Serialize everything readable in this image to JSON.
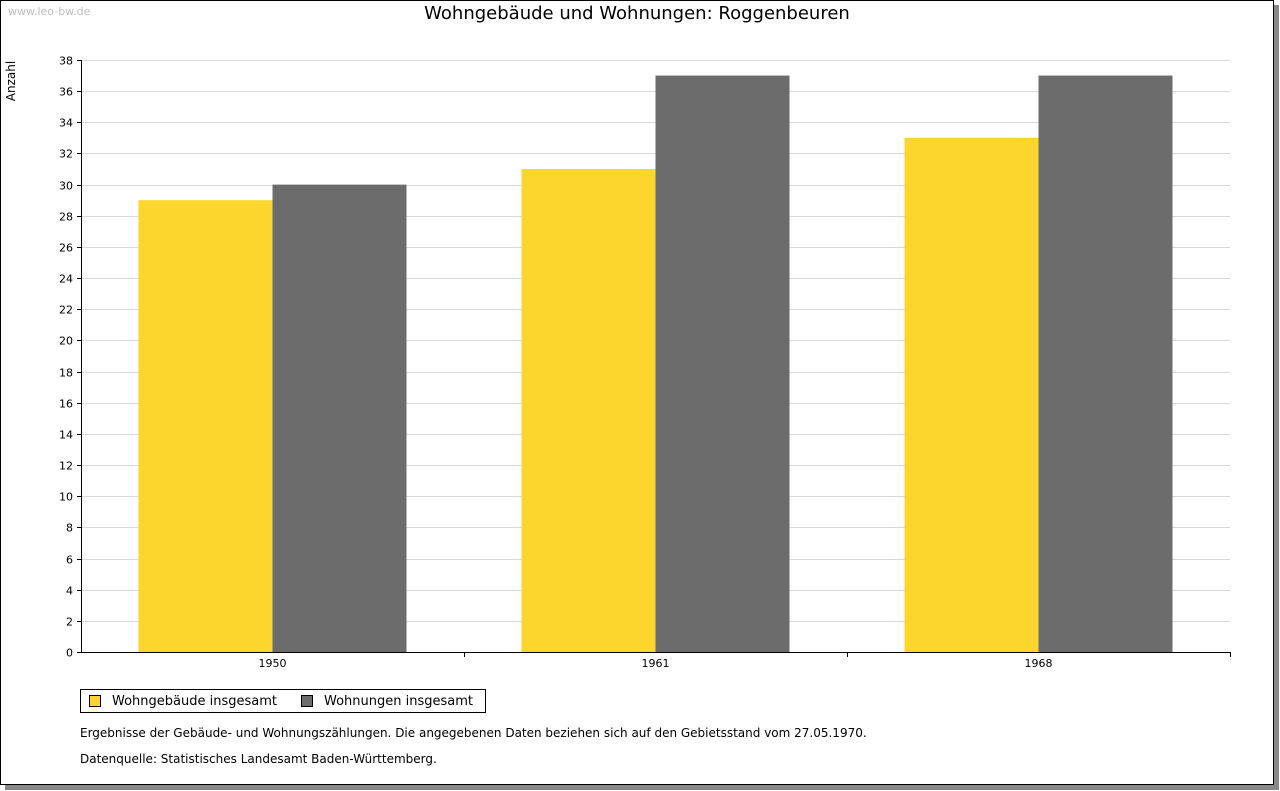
{
  "watermark": "www.leo-bw.de",
  "colors": {
    "wohngebaeude": "#fcd62d",
    "wohnungen": "#6c6c6c"
  },
  "legend": [
    {
      "label": "Wohngebäude insgesamt",
      "color": "#fcd62d"
    },
    {
      "label": "Wohnungen insgesamt",
      "color": "#6c6c6c"
    }
  ],
  "notes": {
    "line1": "Ergebnisse der Gebäude- und Wohnungszählungen. Die angegebenen Daten beziehen sich auf den Gebietsstand vom 27.05.1970.",
    "line2": "Datenquelle: Statistisches Landesamt Baden-Württemberg."
  },
  "chart_data": {
    "type": "bar",
    "title": "Wohngebäude und Wohnungen: Roggenbeuren",
    "xlabel": "",
    "ylabel": "Anzahl",
    "categories": [
      "1950",
      "1961",
      "1968"
    ],
    "series": [
      {
        "name": "Wohngebäude insgesamt",
        "values": [
          29,
          31,
          33
        ]
      },
      {
        "name": "Wohnungen insgesamt",
        "values": [
          30,
          37,
          37
        ]
      }
    ],
    "ylim": [
      0,
      38
    ],
    "yticks": [
      0,
      2,
      4,
      6,
      8,
      10,
      12,
      14,
      16,
      18,
      20,
      22,
      24,
      26,
      28,
      30,
      32,
      34,
      36,
      38
    ],
    "grid": true,
    "legend_position": "bottom-left"
  }
}
